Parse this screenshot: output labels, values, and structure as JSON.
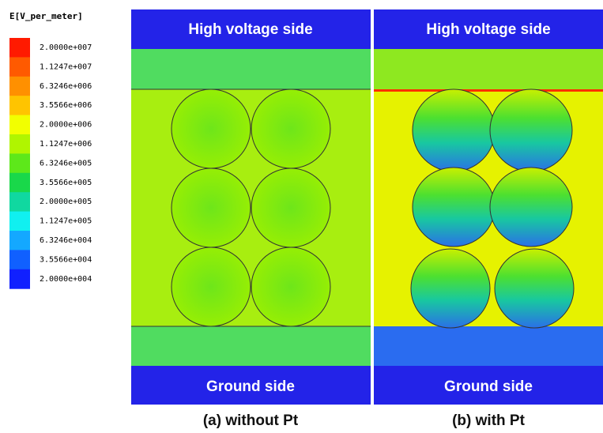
{
  "legend": {
    "title": "E[V_per_meter]",
    "labels": [
      "2.0000e+007",
      "1.1247e+007",
      "6.3246e+006",
      "3.5566e+006",
      "2.0000e+006",
      "1.1247e+006",
      "6.3246e+005",
      "3.5566e+005",
      "2.0000e+005",
      "1.1247e+005",
      "6.3246e+004",
      "3.5566e+004",
      "2.0000e+004"
    ],
    "colors": [
      "#ff1a00",
      "#ff5a00",
      "#ff9000",
      "#ffc400",
      "#f2ff00",
      "#b0f500",
      "#5de81a",
      "#19d84a",
      "#10d8a0",
      "#10f0f0",
      "#14a8ff",
      "#1060ff",
      "#1020ff"
    ]
  },
  "panels": [
    {
      "top": "High voltage side",
      "bottom": "Ground side",
      "caption": "(a) without Pt"
    },
    {
      "top": "High voltage side",
      "bottom": "Ground side",
      "caption": "(b) with Pt"
    }
  ]
}
